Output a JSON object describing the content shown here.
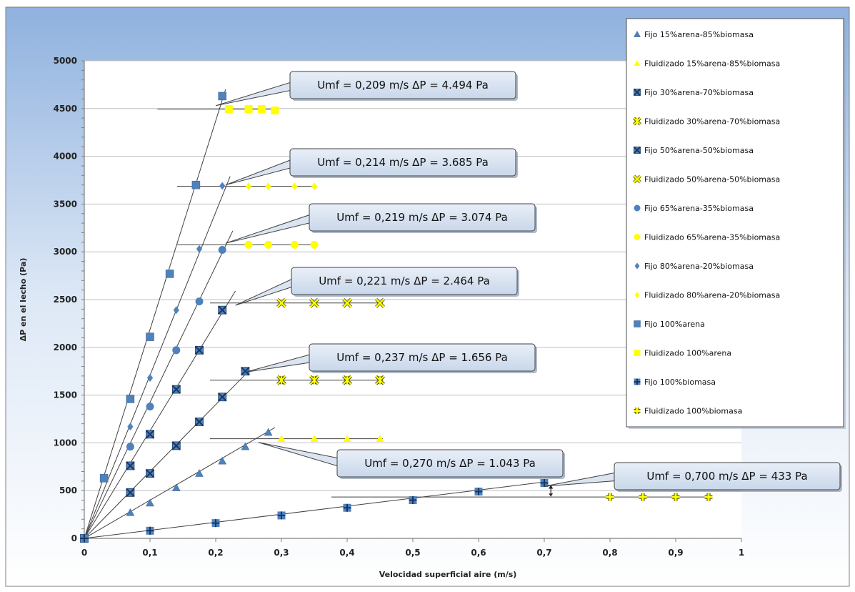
{
  "chart_data": {
    "type": "scatter",
    "title": "",
    "xlabel": "Velocidad superficial  aire (m/s)",
    "ylabel": "ΔP en el lecho (Pa)",
    "xlim": [
      0,
      1
    ],
    "ylim": [
      0,
      5000
    ],
    "x_ticks": [
      "0",
      "0,1",
      "0,2",
      "0,3",
      "0,4",
      "0,5",
      "0,6",
      "0,7",
      "0,8",
      "0,9",
      "1"
    ],
    "y_ticks": [
      "0",
      "500",
      "1000",
      "1500",
      "2000",
      "2500",
      "3000",
      "3500",
      "4000",
      "4500",
      "5000"
    ],
    "grid": true,
    "legend_position": "top-right",
    "series": [
      {
        "name": "Fijo 15%arena-85%biomasa",
        "marker": "triangle",
        "color": "#4f81bd",
        "x": [
          0,
          0.07,
          0.1,
          0.14,
          0.175,
          0.21,
          0.245,
          0.28
        ],
        "y": [
          0,
          270,
          370,
          530,
          680,
          810,
          960,
          1110
        ]
      },
      {
        "name": "Fluidizado 15%arena-85%biomasa",
        "marker": "triangle",
        "color": "#ffff00",
        "x": [
          0.3,
          0.35,
          0.4,
          0.45
        ],
        "y": [
          1043,
          1043,
          1043,
          1043
        ]
      },
      {
        "name": "Fijo 30%arena-70%biomasa",
        "marker": "xsquare",
        "color": "#1f497d",
        "x": [
          0,
          0.07,
          0.1,
          0.14,
          0.175,
          0.21,
          0.245
        ],
        "y": [
          0,
          480,
          680,
          970,
          1220,
          1480,
          1750
        ]
      },
      {
        "name": "Fluidizado 30%arena-70%biomasa",
        "marker": "asterisk",
        "color": "#ffff00",
        "x": [
          0.3,
          0.35,
          0.4,
          0.45
        ],
        "y": [
          1656,
          1656,
          1656,
          1656
        ]
      },
      {
        "name": "Fijo 50%arena-50%biomasa",
        "marker": "xsquare",
        "color": "#1f497d",
        "x": [
          0,
          0.07,
          0.1,
          0.14,
          0.175,
          0.21
        ],
        "y": [
          0,
          760,
          1090,
          1560,
          1970,
          2390
        ]
      },
      {
        "name": "Fluidizado 50%arena-50%biomasa",
        "marker": "x",
        "color": "#ffff00",
        "x": [
          0.3,
          0.35,
          0.4,
          0.45
        ],
        "y": [
          2464,
          2464,
          2464,
          2464
        ]
      },
      {
        "name": "Fijo 65%arena-35%biomasa",
        "marker": "circle",
        "color": "#4f81bd",
        "x": [
          0,
          0.07,
          0.1,
          0.14,
          0.175,
          0.21
        ],
        "y": [
          0,
          960,
          1380,
          1970,
          2480,
          3020
        ]
      },
      {
        "name": "Fluidizado 65%arena-35%biomasa",
        "marker": "circle",
        "color": "#ffff00",
        "x": [
          0.25,
          0.28,
          0.32,
          0.35
        ],
        "y": [
          3074,
          3074,
          3074,
          3074
        ]
      },
      {
        "name": "Fijo 80%arena-20%biomasa",
        "marker": "diamond",
        "color": "#4f81bd",
        "x": [
          0,
          0.07,
          0.1,
          0.14,
          0.175,
          0.21
        ],
        "y": [
          0,
          1170,
          1680,
          2390,
          3030,
          3690
        ]
      },
      {
        "name": "Fluidizado 80%arena-20%biomasa",
        "marker": "diamond",
        "color": "#ffff00",
        "x": [
          0.25,
          0.28,
          0.32,
          0.35
        ],
        "y": [
          3685,
          3685,
          3685,
          3685
        ]
      },
      {
        "name": "Fijo 100%arena",
        "marker": "square",
        "color": "#4f81bd",
        "x": [
          0,
          0.03,
          0.07,
          0.1,
          0.13,
          0.17,
          0.21
        ],
        "y": [
          0,
          630,
          1460,
          2110,
          2770,
          3700,
          4630
        ]
      },
      {
        "name": "Fluidizado 100%arena",
        "marker": "square",
        "color": "#ffff00",
        "x": [
          0.22,
          0.25,
          0.27,
          0.29
        ],
        "y": [
          4494,
          4494,
          4494,
          4480
        ]
      },
      {
        "name": "Fijo 100%biomasa",
        "marker": "plus",
        "color": "#4f81bd",
        "x": [
          0,
          0.1,
          0.2,
          0.3,
          0.4,
          0.5,
          0.6,
          0.7
        ],
        "y": [
          0,
          80,
          160,
          240,
          320,
          400,
          490,
          580
        ]
      },
      {
        "name": "Fluidizado 100%biomasa",
        "marker": "plus",
        "color": "#ffff00",
        "x": [
          0.8,
          0.85,
          0.9,
          0.95
        ],
        "y": [
          433,
          433,
          433,
          433
        ]
      }
    ],
    "fit_lines": [
      {
        "x": [
          0,
          0.215
        ],
        "y": [
          0,
          4700
        ]
      },
      {
        "x": [
          0,
          0.222
        ],
        "y": [
          0,
          3790
        ]
      },
      {
        "x": [
          0,
          0.226
        ],
        "y": [
          0,
          3220
        ]
      },
      {
        "x": [
          0,
          0.23
        ],
        "y": [
          0,
          2590
        ]
      },
      {
        "x": [
          0,
          0.25
        ],
        "y": [
          0,
          1750
        ]
      },
      {
        "x": [
          0,
          0.29
        ],
        "y": [
          0,
          1160
        ]
      },
      {
        "x": [
          0,
          0.7
        ],
        "y": [
          0,
          590
        ]
      }
    ],
    "annotations": [
      {
        "text": "Umf = 0,209 m/s  ΔP = 4.494 Pa",
        "umf": 0.209,
        "dp": 4494
      },
      {
        "text": "Umf = 0,214 m/s  ΔP = 3.685 Pa",
        "umf": 0.214,
        "dp": 3685
      },
      {
        "text": "Umf = 0,219 m/s  ΔP = 3.074 Pa",
        "umf": 0.219,
        "dp": 3074
      },
      {
        "text": "Umf = 0,221 m/s  ΔP = 2.464 Pa",
        "umf": 0.221,
        "dp": 2464
      },
      {
        "text": "Umf = 0,237 m/s  ΔP = 1.656 Pa",
        "umf": 0.237,
        "dp": 1656
      },
      {
        "text": "Umf = 0,270 m/s  ΔP = 1.043 Pa",
        "umf": 0.27,
        "dp": 1043
      },
      {
        "text": "Umf = 0,700 m/s  ΔP = 433 Pa",
        "umf": 0.7,
        "dp": 433
      }
    ]
  }
}
